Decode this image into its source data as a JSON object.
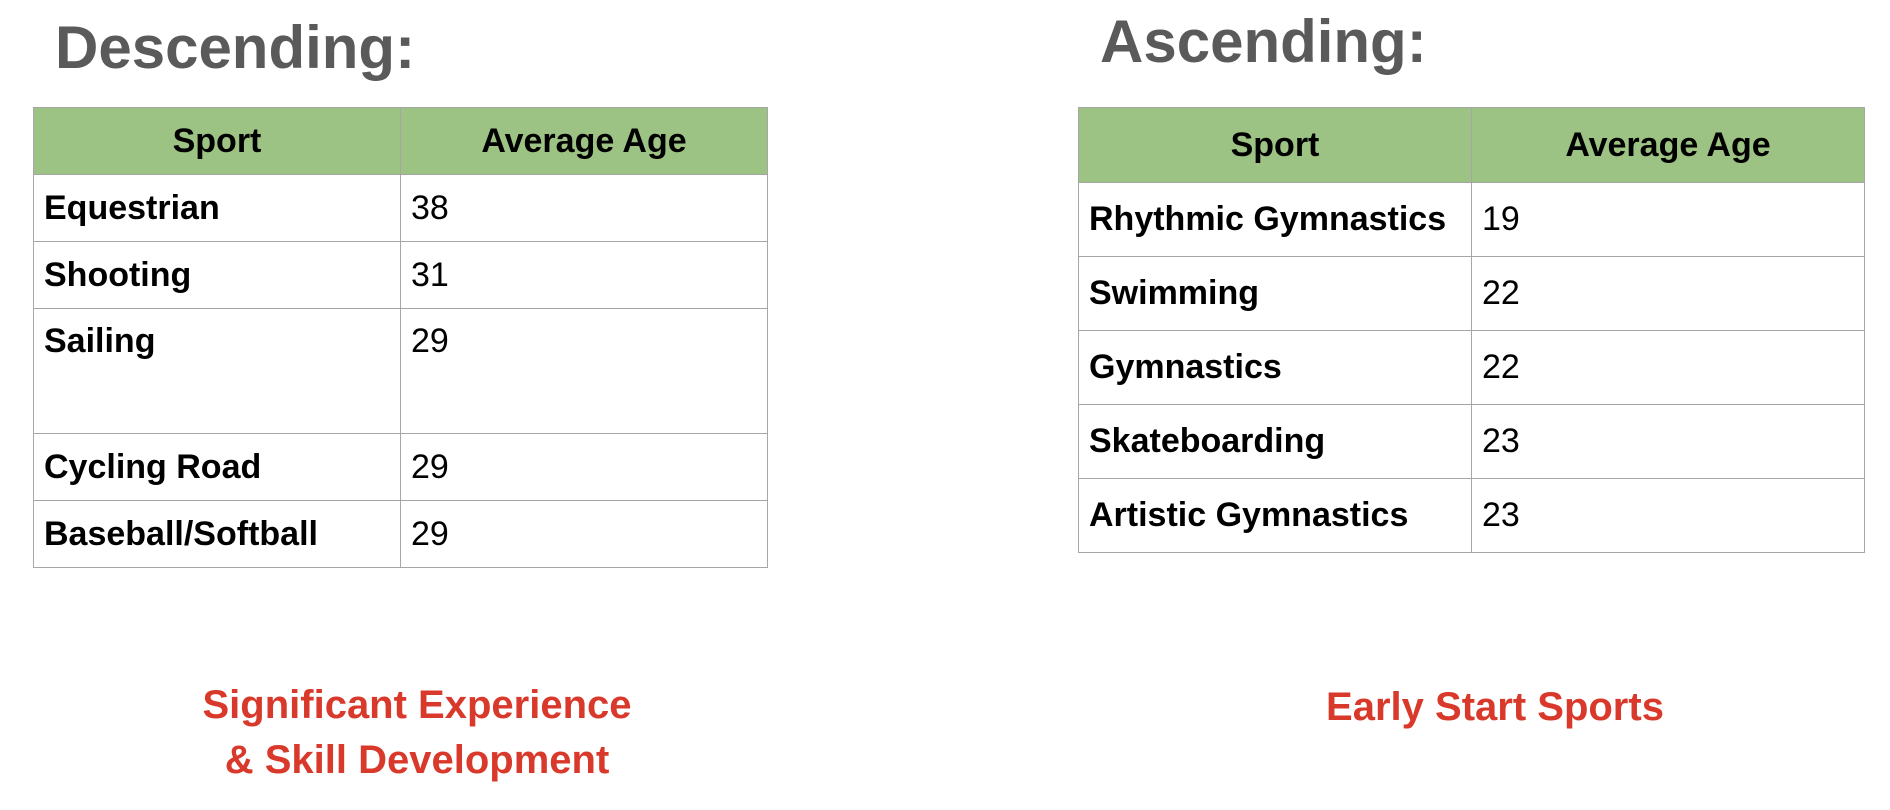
{
  "descending": {
    "heading": "Descending:",
    "headers": {
      "sport": "Sport",
      "age": "Average Age"
    },
    "rows": [
      {
        "sport": "Equestrian",
        "age": "38"
      },
      {
        "sport": "Shooting",
        "age": "31"
      },
      {
        "sport": "Sailing",
        "age": "29"
      },
      {
        "sport": "Cycling Road",
        "age": "29"
      },
      {
        "sport": "Baseball/Softball",
        "age": "29"
      }
    ],
    "caption_line1": "Significant Experience",
    "caption_line2": "& Skill Development"
  },
  "ascending": {
    "heading": "Ascending:",
    "headers": {
      "sport": "Sport",
      "age": "Average Age"
    },
    "rows": [
      {
        "sport": "Rhythmic Gymnastics",
        "age": "19"
      },
      {
        "sport": "Swimming",
        "age": "22"
      },
      {
        "sport": "Gymnastics",
        "age": "22"
      },
      {
        "sport": "Skateboarding",
        "age": "23"
      },
      {
        "sport": "Artistic Gymnastics",
        "age": "23"
      }
    ],
    "caption": "Early Start Sports"
  },
  "colors": {
    "heading_text": "#5a5a5a",
    "header_fill": "#9dc384",
    "border": "#a6a6a6",
    "caption_text": "#d9392b"
  }
}
